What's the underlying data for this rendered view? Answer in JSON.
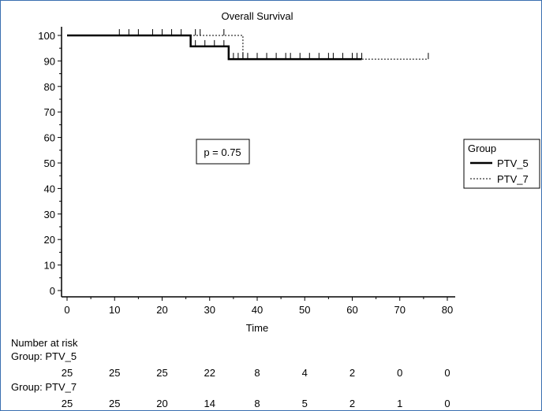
{
  "chart_data": {
    "type": "line",
    "title": "Overall Survival",
    "xlabel": "Time",
    "ylabel": "",
    "xlim": [
      0,
      80
    ],
    "ylim": [
      0,
      100
    ],
    "xticks": [
      "0",
      "10",
      "20",
      "30",
      "40",
      "50",
      "60",
      "70",
      "80"
    ],
    "yticks": [
      "0",
      "10",
      "20",
      "30",
      "40",
      "50",
      "60",
      "70",
      "80",
      "90",
      "100"
    ],
    "annotation": "p = 0.75",
    "legend": {
      "title": "Group",
      "position": "right"
    },
    "series": [
      {
        "name": "PTV_5",
        "style": "solid",
        "steps": [
          [
            0,
            100
          ],
          [
            26,
            100
          ],
          [
            26,
            95.7
          ],
          [
            34,
            95.7
          ],
          [
            34,
            90.7
          ],
          [
            62,
            90.7
          ]
        ],
        "censor_x": [
          11,
          13,
          15,
          18,
          20,
          22,
          24,
          27,
          29,
          31,
          33,
          34,
          35,
          36,
          37,
          38,
          40,
          42,
          47,
          49,
          53,
          55,
          58,
          60,
          62
        ],
        "censor_y": [
          100,
          100,
          100,
          100,
          100,
          100,
          100,
          95.7,
          95.7,
          95.7,
          95.7,
          90.7,
          90.7,
          90.7,
          90.7,
          90.7,
          90.7,
          90.7,
          90.7,
          90.7,
          90.7,
          90.7,
          90.7,
          90.7,
          90.7
        ]
      },
      {
        "name": "PTV_7",
        "style": "dashed",
        "steps": [
          [
            0,
            100
          ],
          [
            37,
            100
          ],
          [
            37,
            90.7
          ],
          [
            76,
            90.7
          ]
        ],
        "censor_x": [
          27,
          28,
          33,
          37,
          44,
          46,
          51,
          56,
          61,
          76
        ],
        "censor_y": [
          100,
          100,
          100,
          90.7,
          90.7,
          90.7,
          90.7,
          90.7,
          90.7,
          90.7
        ]
      }
    ],
    "risk_table": {
      "title": "Number at risk",
      "times": [
        0,
        10,
        20,
        30,
        40,
        50,
        60,
        70,
        80
      ],
      "groups": [
        {
          "label": "Group: PTV_5",
          "values": [
            "25",
            "25",
            "25",
            "22",
            "8",
            "4",
            "2",
            "0",
            "0"
          ]
        },
        {
          "label": "Group: PTV_7",
          "values": [
            "25",
            "25",
            "20",
            "14",
            "8",
            "5",
            "2",
            "1",
            "0"
          ]
        }
      ]
    }
  }
}
